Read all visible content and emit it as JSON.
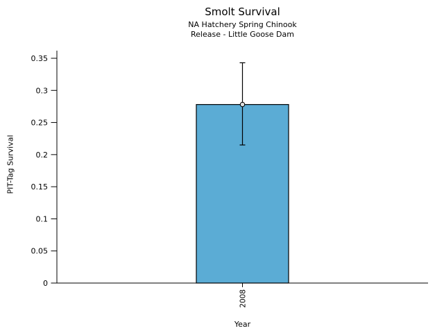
{
  "chart_data": {
    "type": "bar",
    "title": "Smolt Survival",
    "subtitle_lines": [
      "NA Hatchery Spring Chinook",
      "Release - Little Goose Dam"
    ],
    "xlabel": "Year",
    "ylabel": "PIT-Tag Survival",
    "categories": [
      "2008"
    ],
    "values": [
      0.278
    ],
    "error_bars": [
      {
        "lower": 0.215,
        "upper": 0.343
      }
    ],
    "marker": "open-circle",
    "ylim": [
      0,
      0.35
    ],
    "yticks": [
      0,
      0.05,
      0.1,
      0.15,
      0.2,
      0.25,
      0.3,
      0.35
    ],
    "ytick_labels": [
      "0",
      "0.05",
      "0.1",
      "0.15",
      "0.2",
      "0.25",
      "0.3",
      "0.35"
    ],
    "xtick_label_rotation_deg": 90,
    "bar_color": "#5BACD5",
    "bar_edge_color": "#000000",
    "error_color": "#000000",
    "text_color": "#000000",
    "background_color": "#ffffff",
    "grid": false,
    "legend": "none"
  }
}
